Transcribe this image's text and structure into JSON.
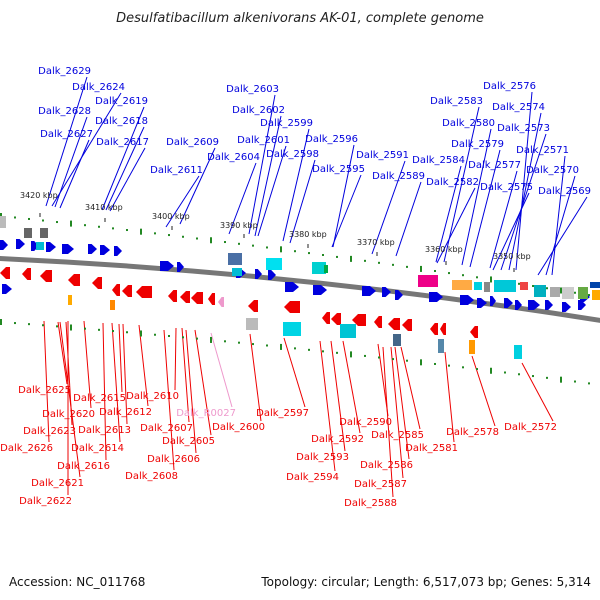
{
  "title": "Desulfatibacillum alkenivorans AK-01, complete genome",
  "footer": {
    "accession": "Accession: NC_011768",
    "summary": "Topology: circular; Length: 6,517,073 bp; Genes: 5,314"
  },
  "colors": {
    "forward": "#0000dd",
    "reverse": "#ee0000",
    "rna": "#ee99cc",
    "tick": "#228822",
    "backbone": "#777777"
  },
  "ticks": [
    "3420 kbp",
    "3410 kbp",
    "3400 kbp",
    "3390 kbp",
    "3380 kbp",
    "3370 kbp",
    "3360 kbp",
    "3350 kbp"
  ],
  "forward_genes": [
    "Dalk_2629",
    "Dalk_2624",
    "Dalk_2628",
    "Dalk_2619",
    "Dalk_2618",
    "Dalk_2627",
    "Dalk_2617",
    "Dalk_2609",
    "Dalk_2611",
    "Dalk_2603",
    "Dalk_2602",
    "Dalk_2601",
    "Dalk_2604",
    "Dalk_2599",
    "Dalk_2598",
    "Dalk_2596",
    "Dalk_2595",
    "Dalk_2591",
    "Dalk_2589",
    "Dalk_2583",
    "Dalk_2584",
    "Dalk_2582",
    "Dalk_2580",
    "Dalk_2579",
    "Dalk_2577",
    "Dalk_2576",
    "Dalk_2574",
    "Dalk_2573",
    "Dalk_2575",
    "Dalk_2571",
    "Dalk_2570",
    "Dalk_2569"
  ],
  "reverse_genes": [
    "Dalk_2625",
    "Dalk_2620",
    "Dalk_2623",
    "Dalk_2626",
    "Dalk_2621",
    "Dalk_2622",
    "Dalk_2616",
    "Dalk_2615",
    "Dalk_2613",
    "Dalk_2614",
    "Dalk_2612",
    "Dalk_2610",
    "Dalk_2607",
    "Dalk_2605",
    "Dalk_2606",
    "Dalk_2608",
    "Dalk_2600",
    "Dalk_2597",
    "Dalk_2590",
    "Dalk_2592",
    "Dalk_2593",
    "Dalk_2594",
    "Dalk_2585",
    "Dalk_2586",
    "Dalk_2587",
    "Dalk_2588",
    "Dalk_2581",
    "Dalk_2578",
    "Dalk_2572"
  ],
  "rna_genes": [
    "Dalk_R0027"
  ]
}
